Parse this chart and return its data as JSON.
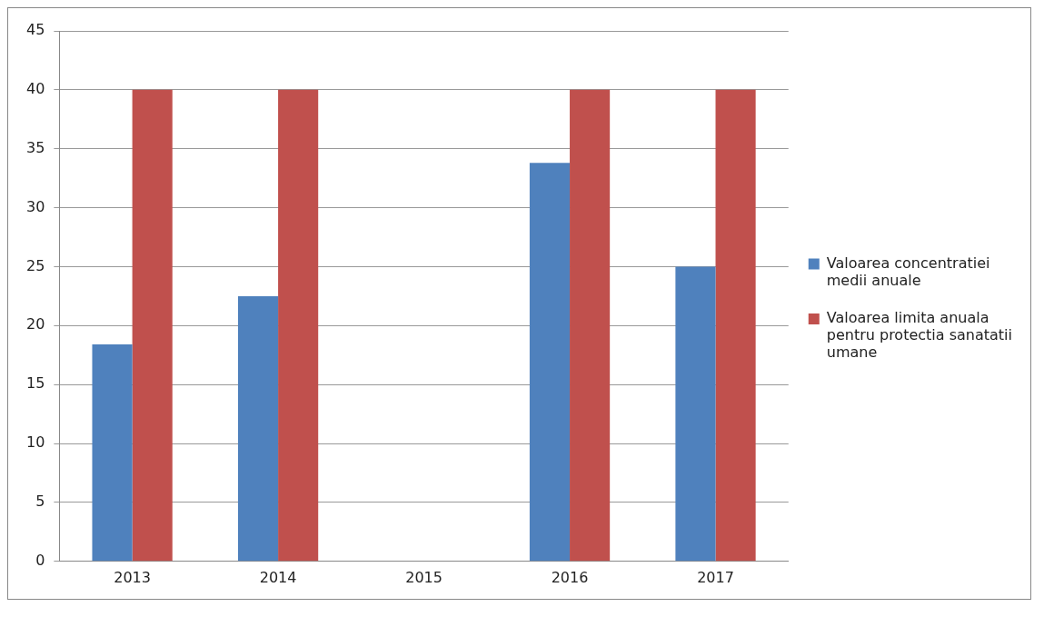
{
  "chart_data": {
    "type": "bar",
    "categories": [
      "2013",
      "2014",
      "2015",
      "2016",
      "2017"
    ],
    "series": [
      {
        "name": "Valoarea concentratiei medii anuale",
        "color": "#4f81bd",
        "values": [
          18.4,
          22.5,
          null,
          33.8,
          25.0
        ]
      },
      {
        "name": "Valoarea limita anuala pentru protectia sanatatii umane",
        "color": "#c0504d",
        "values": [
          40,
          40,
          null,
          40,
          40
        ]
      }
    ],
    "ylim": [
      0,
      45
    ],
    "yticks": [
      0,
      5,
      10,
      15,
      20,
      25,
      30,
      35,
      40,
      45
    ],
    "grid": "y",
    "legend": "right"
  }
}
